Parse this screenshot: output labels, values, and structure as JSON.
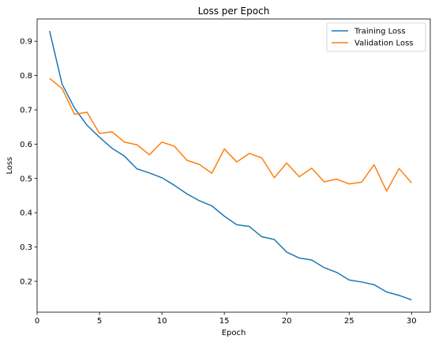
{
  "chart_data": {
    "type": "line",
    "title": "Loss per Epoch",
    "xlabel": "Epoch",
    "ylabel": "Loss",
    "xlim": [
      0,
      31.5
    ],
    "ylim": [
      0.11,
      0.965
    ],
    "xticks": [
      0,
      5,
      10,
      15,
      20,
      25,
      30
    ],
    "yticks": [
      0.2,
      0.3,
      0.4,
      0.5,
      0.6,
      0.7,
      0.8,
      0.9
    ],
    "grid": false,
    "legend_position": "top-right",
    "x": [
      1,
      2,
      3,
      4,
      5,
      6,
      7,
      8,
      9,
      10,
      11,
      12,
      13,
      14,
      15,
      16,
      17,
      18,
      19,
      20,
      21,
      22,
      23,
      24,
      25,
      26,
      27,
      28,
      29,
      30
    ],
    "series": [
      {
        "name": "Training Loss",
        "color": "#1f77b4",
        "values": [
          0.93,
          0.775,
          0.705,
          0.655,
          0.62,
          0.588,
          0.565,
          0.528,
          0.516,
          0.502,
          0.48,
          0.455,
          0.435,
          0.42,
          0.39,
          0.365,
          0.36,
          0.33,
          0.322,
          0.285,
          0.268,
          0.262,
          0.24,
          0.226,
          0.204,
          0.198,
          0.19,
          0.169,
          0.159,
          0.146
        ]
      },
      {
        "name": "Validation Loss",
        "color": "#ff7f0e",
        "values": [
          0.792,
          0.762,
          0.687,
          0.693,
          0.631,
          0.636,
          0.606,
          0.598,
          0.569,
          0.606,
          0.594,
          0.553,
          0.541,
          0.515,
          0.586,
          0.548,
          0.573,
          0.56,
          0.502,
          0.545,
          0.505,
          0.53,
          0.49,
          0.498,
          0.484,
          0.489,
          0.54,
          0.463,
          0.529,
          0.487
        ]
      }
    ]
  }
}
